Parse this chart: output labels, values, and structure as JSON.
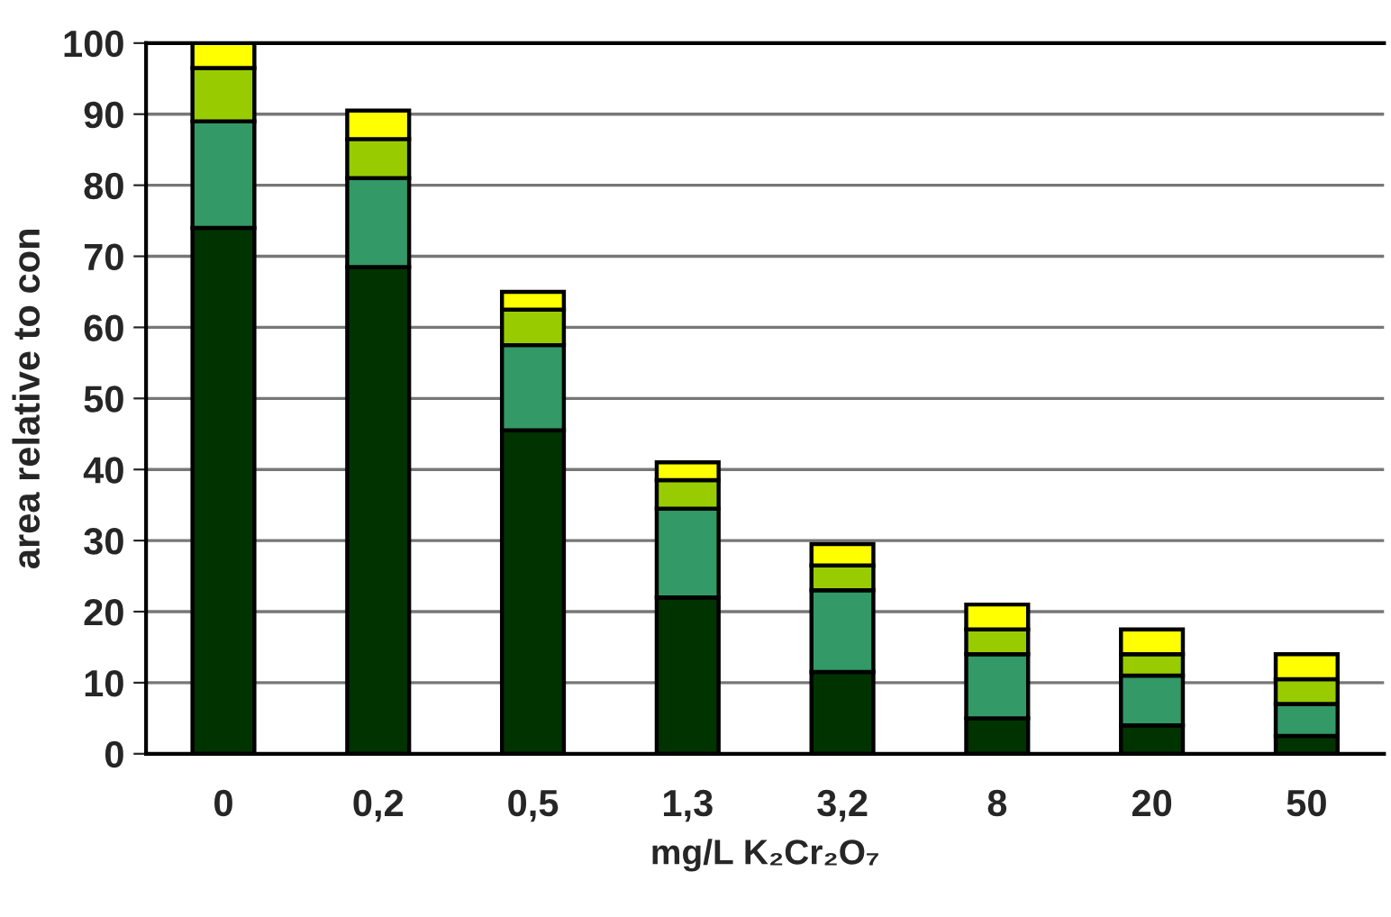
{
  "chart_data": {
    "type": "bar",
    "stacked": true,
    "xlabel": "mg/L K₂Cr₂O₇",
    "ylabel": "area relative to con",
    "categories": [
      "0",
      "0,2",
      "0,5",
      "1,3",
      "3,2",
      "8",
      "20",
      "50"
    ],
    "series": [
      {
        "color": "#003300",
        "values": [
          74,
          68.5,
          45.5,
          22,
          11.5,
          5,
          4,
          2.5
        ]
      },
      {
        "color": "#339966",
        "values": [
          15,
          12.5,
          12,
          12.5,
          11.5,
          9,
          7,
          4.5
        ]
      },
      {
        "color": "#99cc00",
        "values": [
          7.5,
          5.5,
          5,
          4,
          3.5,
          3.5,
          3,
          3.5
        ]
      },
      {
        "color": "#ffff00",
        "values": [
          3.5,
          4,
          2.5,
          2.5,
          3,
          3.5,
          3.5,
          3.5
        ]
      }
    ],
    "ylim": [
      0,
      100
    ],
    "yticks": [
      0,
      10,
      20,
      30,
      40,
      50,
      60,
      70,
      80,
      90,
      100
    ],
    "grid": "y",
    "legend": false
  }
}
